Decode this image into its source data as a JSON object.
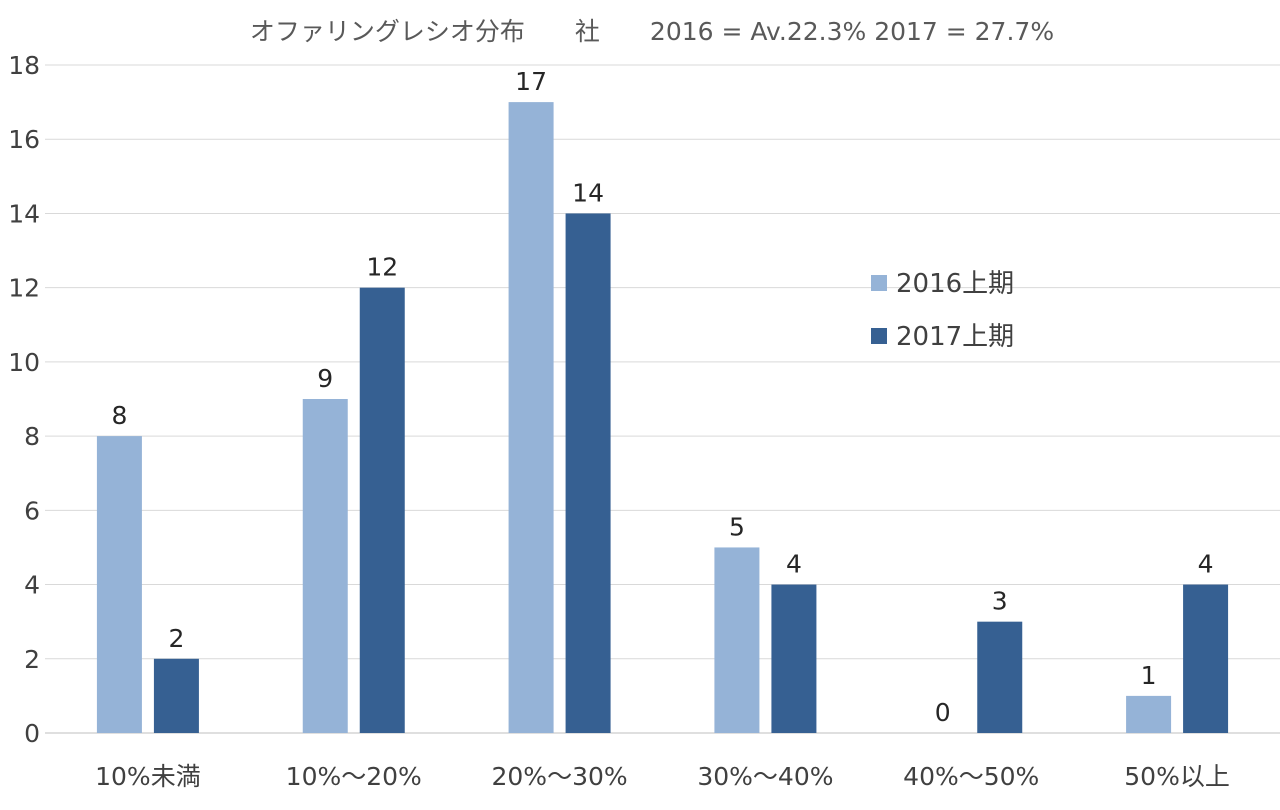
{
  "chart_data": {
    "type": "bar",
    "title": "オファリングレシオ分布　　社　　2016 = Av.22.3%  2017 = 27.7%",
    "xlabel": "",
    "ylabel": "",
    "ylim": [
      0,
      18
    ],
    "yticks": [
      "0",
      "2",
      "4",
      "6",
      "8",
      "10",
      "12",
      "14",
      "16",
      "18"
    ],
    "categories": [
      "10%未満",
      "10%～20%",
      "20%～30%",
      "30%～40%",
      "40%～50%",
      "50%以上"
    ],
    "series": [
      {
        "name": "2016上期",
        "color": "#95b3d7",
        "values": [
          8,
          9,
          17,
          5,
          0,
          1
        ]
      },
      {
        "name": "2017上期",
        "color": "#366092",
        "values": [
          2,
          12,
          14,
          4,
          3,
          4
        ]
      }
    ],
    "grid": true,
    "legend_position": "right"
  }
}
